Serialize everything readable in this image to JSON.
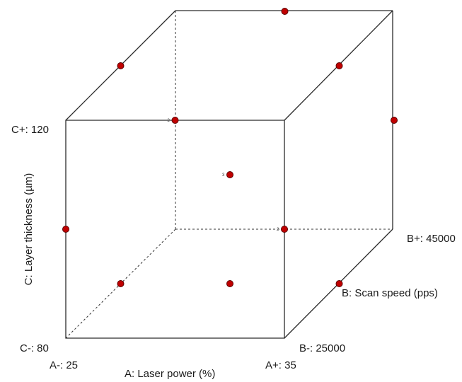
{
  "colors": {
    "point": "#c00000",
    "edge": "#2b2b2b"
  },
  "factors": {
    "A": {
      "label": "A: Laser power (%)",
      "low": "A-: 25",
      "high": "A+: 35"
    },
    "B": {
      "label": "B: Scan speed (pps)",
      "low": "B-: 25000",
      "high": "B+: 45000"
    },
    "C": {
      "label": "C: Layer thickness  (µm)",
      "low": "C-: 80",
      "high": "C+: 120"
    }
  },
  "design_points": [
    {
      "a": 0,
      "b": 0,
      "c": -1,
      "count": ""
    },
    {
      "a": 0,
      "b": 1,
      "c": 1,
      "count": ""
    },
    {
      "a": 1,
      "b": 0,
      "c": 1,
      "count": ""
    },
    {
      "a": -1,
      "b": 0,
      "c": 1,
      "count": ""
    },
    {
      "a": 0,
      "b": -1,
      "c": 1,
      "count": "2"
    },
    {
      "a": 1,
      "b": 1,
      "c": 0,
      "count": ""
    },
    {
      "a": -1,
      "b": -1,
      "c": 0,
      "count": ""
    },
    {
      "a": 1,
      "b": -1,
      "c": 0,
      "count": "2"
    },
    {
      "a": 0,
      "b": 0,
      "c": 0,
      "count": "3"
    },
    {
      "a": -1,
      "b": 0,
      "c": -1,
      "count": ""
    },
    {
      "a": 1,
      "b": 0,
      "c": -1,
      "count": ""
    }
  ]
}
